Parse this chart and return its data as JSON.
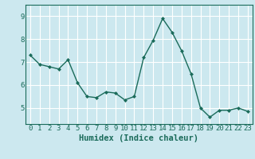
{
  "x": [
    0,
    1,
    2,
    3,
    4,
    5,
    6,
    7,
    8,
    9,
    10,
    11,
    12,
    13,
    14,
    15,
    16,
    17,
    18,
    19,
    20,
    21,
    22,
    23
  ],
  "y": [
    7.3,
    6.9,
    6.8,
    6.7,
    7.1,
    6.1,
    5.5,
    5.45,
    5.7,
    5.65,
    5.35,
    5.5,
    7.2,
    7.95,
    8.9,
    8.3,
    7.5,
    6.5,
    5.0,
    4.6,
    4.9,
    4.9,
    5.0,
    4.85
  ],
  "line_color": "#1a6b5a",
  "marker": "D",
  "marker_size": 2.0,
  "bg_color": "#cce8ef",
  "grid_color": "#ffffff",
  "xlabel": "Humidex (Indice chaleur)",
  "ylim": [
    4.3,
    9.5
  ],
  "xlim": [
    -0.5,
    23.5
  ],
  "yticks": [
    5,
    6,
    7,
    8,
    9
  ],
  "xticks": [
    0,
    1,
    2,
    3,
    4,
    5,
    6,
    7,
    8,
    9,
    10,
    11,
    12,
    13,
    14,
    15,
    16,
    17,
    18,
    19,
    20,
    21,
    22,
    23
  ],
  "tick_color": "#1a6b5a",
  "label_color": "#1a6b5a",
  "font_size_xlabel": 7.5,
  "font_size_tick": 6.5,
  "linewidth": 1.0
}
